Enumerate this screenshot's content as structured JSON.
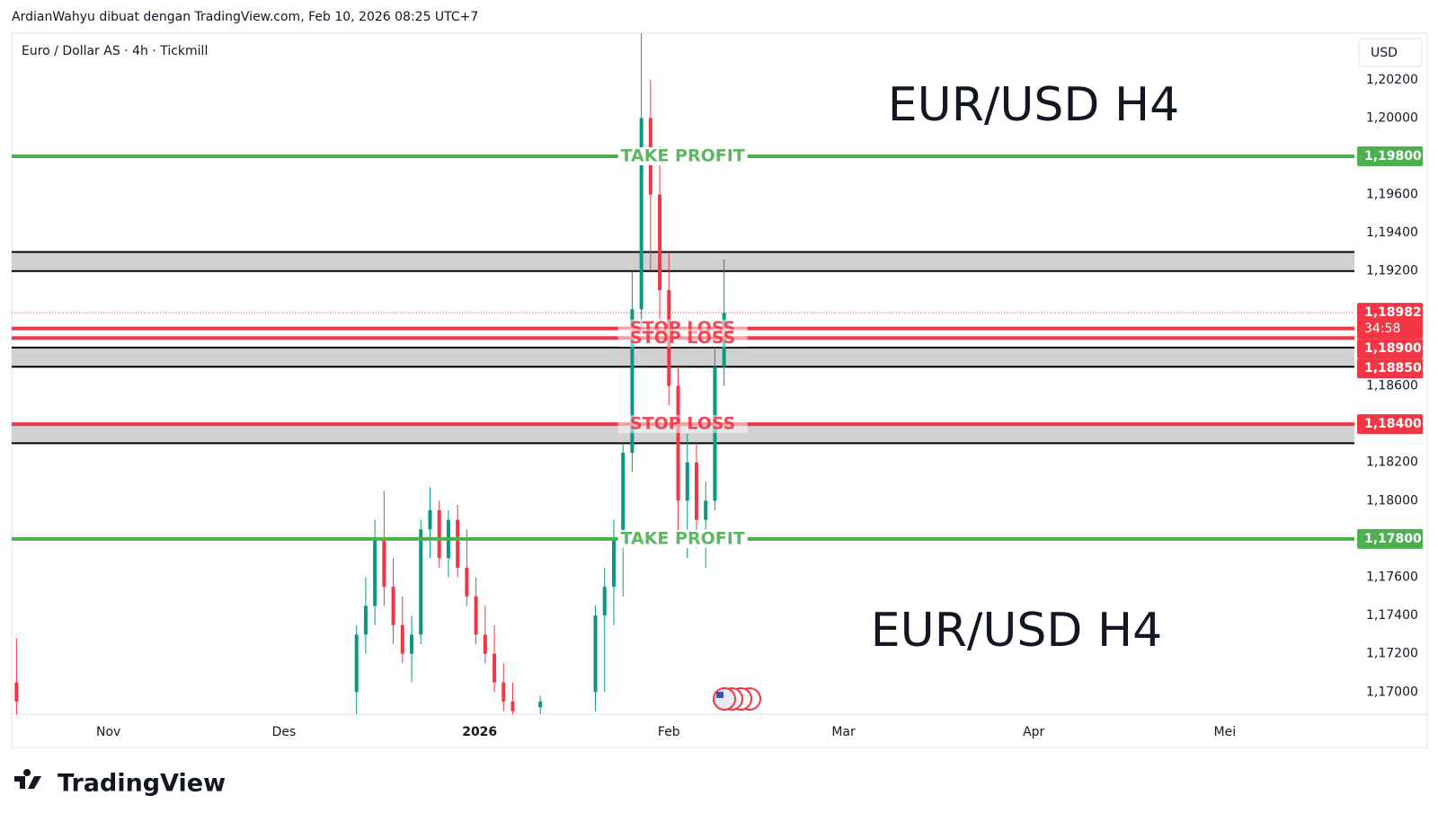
{
  "header": "ArdianWahyu dibuat dengan TradingView.com, Feb 10, 2026 08:25 UTC+7",
  "footer": "TradingView",
  "chart_data": {
    "type": "candlestick",
    "title": "Euro / Dollar AS · 4h · Tickmill",
    "currency": "USD",
    "annotations": [
      "EUR/USD H4",
      "EUR/USD H4"
    ],
    "x_labels": [
      "Nov",
      "Des",
      "2026",
      "Feb",
      "Mar",
      "Apr",
      "Mei"
    ],
    "up_color": "#089981",
    "down_color": "#f23645",
    "grid": false,
    "open": [
      1.1705,
      null,
      null,
      null,
      null,
      null,
      null,
      null,
      null,
      null,
      null,
      null,
      null,
      null,
      null,
      null,
      null,
      null,
      null,
      null,
      null,
      null,
      null,
      null,
      null,
      null,
      null,
      null,
      null,
      null,
      null,
      null,
      null,
      null,
      null,
      null,
      null,
      1.17,
      1.173,
      1.1745,
      1.178,
      1.1755,
      1.1735,
      1.172,
      1.173,
      1.1785,
      1.1795,
      1.177,
      1.179,
      1.1765,
      1.175,
      1.173,
      1.172,
      1.1705,
      1.1695,
      null,
      null,
      1.1692,
      null,
      null,
      null,
      null,
      null,
      1.17,
      1.174,
      1.1755,
      1.178,
      1.1825,
      1.19,
      1.2,
      1.196,
      1.191,
      1.186,
      1.18,
      1.182,
      1.179,
      1.18,
      1.187
    ],
    "high": [
      1.1728,
      null,
      null,
      null,
      null,
      null,
      null,
      null,
      null,
      null,
      null,
      null,
      null,
      null,
      null,
      null,
      null,
      null,
      null,
      null,
      null,
      null,
      null,
      null,
      null,
      null,
      null,
      null,
      null,
      null,
      null,
      null,
      null,
      null,
      null,
      null,
      null,
      1.1735,
      1.176,
      1.179,
      1.1805,
      1.177,
      1.175,
      1.174,
      1.179,
      1.1807,
      1.18,
      1.1795,
      1.1798,
      1.1785,
      1.176,
      1.1745,
      1.1735,
      1.1715,
      1.1705,
      null,
      null,
      1.1698,
      null,
      null,
      null,
      null,
      null,
      1.1745,
      1.1765,
      1.179,
      1.183,
      1.192,
      1.2045,
      1.202,
      1.1985,
      1.193,
      1.187,
      1.1835,
      1.183,
      1.181,
      1.188,
      1.1926
    ],
    "low": [
      1.1688,
      null,
      null,
      null,
      null,
      null,
      null,
      null,
      null,
      null,
      null,
      null,
      null,
      null,
      null,
      null,
      null,
      null,
      null,
      null,
      null,
      null,
      null,
      null,
      null,
      null,
      null,
      null,
      null,
      null,
      null,
      null,
      null,
      null,
      null,
      null,
      null,
      1.1688,
      1.172,
      1.1735,
      1.1745,
      1.1725,
      1.1715,
      1.1705,
      1.1725,
      1.177,
      1.1765,
      1.176,
      1.176,
      1.1745,
      1.1725,
      1.1715,
      1.17,
      1.169,
      1.1688,
      null,
      null,
      1.1688,
      null,
      null,
      null,
      null,
      null,
      1.169,
      1.17,
      1.1735,
      1.175,
      1.1815,
      1.189,
      1.192,
      1.1895,
      1.185,
      1.178,
      1.177,
      1.1775,
      1.1765,
      1.1795,
      1.186
    ],
    "close": [
      1.1695,
      null,
      null,
      null,
      null,
      null,
      null,
      null,
      null,
      null,
      null,
      null,
      null,
      null,
      null,
      null,
      null,
      null,
      null,
      null,
      null,
      null,
      null,
      null,
      null,
      null,
      null,
      null,
      null,
      null,
      null,
      null,
      null,
      null,
      null,
      null,
      null,
      1.173,
      1.1745,
      1.178,
      1.1755,
      1.1735,
      1.172,
      1.173,
      1.1785,
      1.1795,
      1.177,
      1.179,
      1.1765,
      1.175,
      1.173,
      1.172,
      1.1705,
      1.1695,
      1.169,
      null,
      null,
      1.1695,
      null,
      null,
      null,
      null,
      null,
      1.174,
      1.1755,
      1.178,
      1.1825,
      1.19,
      1.2,
      1.196,
      1.191,
      1.186,
      1.18,
      1.182,
      1.179,
      1.18,
      1.187,
      1.18982
    ],
    "ylim": [
      1.16882,
      1.20444
    ],
    "yticks": [
      {
        "value": 1.17,
        "label": "1,17000"
      },
      {
        "value": 1.172,
        "label": "1,17200"
      },
      {
        "value": 1.174,
        "label": "1,17400"
      },
      {
        "value": 1.176,
        "label": "1,17600"
      },
      {
        "value": 1.178,
        "label": "1,17800"
      },
      {
        "value": 1.18,
        "label": "1,18000"
      },
      {
        "value": 1.182,
        "label": "1,18200"
      },
      {
        "value": 1.184,
        "label": "1,18400"
      },
      {
        "value": 1.186,
        "label": "1,18600"
      },
      {
        "value": 1.188,
        "label": "1,18800"
      },
      {
        "value": 1.19,
        "label": "1,19000"
      },
      {
        "value": 1.192,
        "label": "1,19200"
      },
      {
        "value": 1.194,
        "label": "1,19400"
      },
      {
        "value": 1.196,
        "label": "1,19600"
      },
      {
        "value": 1.198,
        "label": "1,19800"
      },
      {
        "value": 1.2,
        "label": "1,20000"
      },
      {
        "value": 1.202,
        "label": "1,20200"
      }
    ],
    "zones": [
      [
        1.193,
        1.192
      ],
      [
        1.188,
        1.187
      ],
      [
        1.184,
        1.183
      ]
    ],
    "levels": [
      {
        "label": "TAKE PROFIT",
        "value": 1.198,
        "value_label": "1,19800",
        "color": "#4caf50"
      },
      {
        "label": "STOP LOSS",
        "value": 1.189,
        "value_label": "1,18900",
        "color": "#f23645"
      },
      {
        "label": "STOP LOSS",
        "value": 1.1885,
        "value_label": "1,18850",
        "color": "#f23645"
      },
      {
        "label": "STOP LOSS",
        "value": 1.184,
        "value_label": "1,18400",
        "color": "#f23645"
      },
      {
        "label": "TAKE PROFIT",
        "value": 1.178,
        "value_label": "1,17800",
        "color": "#4caf50"
      }
    ],
    "last_price": {
      "value": 1.18982,
      "label": "1,18982",
      "countdown": "34:58",
      "color": "#f23645"
    }
  }
}
